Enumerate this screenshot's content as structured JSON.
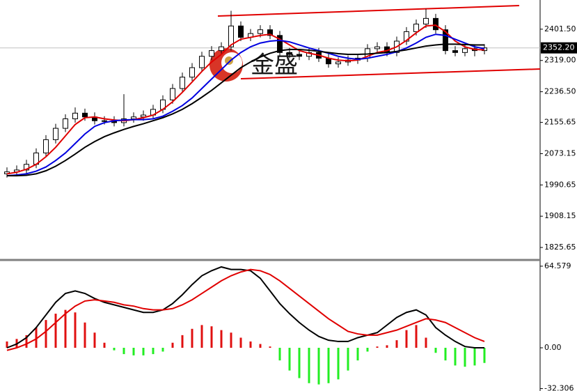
{
  "chart_data": [
    {
      "type": "candlestick",
      "watermark": "金盛",
      "open": [
        2020,
        2025,
        2030,
        2045,
        2075,
        2110,
        2140,
        2165,
        2180,
        2170,
        2160,
        2160,
        2155,
        2165,
        2170,
        2175,
        2190,
        2215,
        2245,
        2275,
        2300,
        2330,
        2345,
        2355,
        2410,
        2380,
        2390,
        2400,
        2385,
        2340,
        2335,
        2330,
        2340,
        2325,
        2310,
        2315,
        2320,
        2325,
        2350,
        2355,
        2340,
        2370,
        2395,
        2415,
        2430,
        2400,
        2345,
        2340,
        2350,
        2345
      ],
      "high": [
        2037,
        2042,
        2057,
        2087,
        2122,
        2152,
        2177,
        2195,
        2192,
        2182,
        2172,
        2172,
        2230,
        2182,
        2187,
        2202,
        2227,
        2257,
        2287,
        2312,
        2342,
        2357,
        2367,
        2450,
        2422,
        2402,
        2412,
        2412,
        2397,
        2352,
        2347,
        2352,
        2352,
        2337,
        2327,
        2332,
        2337,
        2362,
        2367,
        2367,
        2382,
        2407,
        2427,
        2455,
        2442,
        2412,
        2357,
        2362,
        2362,
        2362
      ],
      "low": [
        2010,
        2015,
        2020,
        2035,
        2065,
        2100,
        2130,
        2155,
        2160,
        2150,
        2150,
        2145,
        2145,
        2155,
        2160,
        2165,
        2180,
        2205,
        2235,
        2265,
        2290,
        2320,
        2335,
        2345,
        2370,
        2370,
        2380,
        2375,
        2330,
        2325,
        2320,
        2320,
        2315,
        2300,
        2300,
        2305,
        2310,
        2315,
        2340,
        2330,
        2330,
        2360,
        2385,
        2405,
        2390,
        2335,
        2330,
        2330,
        2330,
        2335
      ],
      "close": [
        2025,
        2030,
        2045,
        2075,
        2110,
        2140,
        2165,
        2180,
        2170,
        2160,
        2160,
        2155,
        2165,
        2170,
        2175,
        2190,
        2215,
        2245,
        2275,
        2300,
        2330,
        2345,
        2355,
        2410,
        2380,
        2390,
        2400,
        2385,
        2340,
        2335,
        2330,
        2340,
        2325,
        2310,
        2315,
        2320,
        2325,
        2350,
        2355,
        2340,
        2370,
        2395,
        2415,
        2430,
        2400,
        2345,
        2340,
        2350,
        2345,
        2352.2
      ],
      "up_color": "#ffffff",
      "down_color": "#000000",
      "outline_color": "#000000",
      "series": [
        {
          "color": "#e00000",
          "values": [
            2020,
            2024,
            2032,
            2045,
            2065,
            2090,
            2120,
            2150,
            2168,
            2170,
            2165,
            2162,
            2160,
            2163,
            2168,
            2175,
            2190,
            2210,
            2235,
            2262,
            2290,
            2315,
            2335,
            2360,
            2375,
            2380,
            2385,
            2388,
            2375,
            2360,
            2345,
            2338,
            2333,
            2325,
            2320,
            2318,
            2320,
            2330,
            2340,
            2345,
            2355,
            2372,
            2392,
            2410,
            2412,
            2395,
            2370,
            2355,
            2348,
            2347
          ]
        },
        {
          "color": "#0000e0",
          "values": [
            2015,
            2017,
            2020,
            2027,
            2038,
            2055,
            2075,
            2100,
            2125,
            2145,
            2155,
            2160,
            2162,
            2163,
            2163,
            2165,
            2172,
            2185,
            2200,
            2220,
            2245,
            2270,
            2295,
            2320,
            2340,
            2355,
            2365,
            2370,
            2372,
            2368,
            2360,
            2352,
            2345,
            2338,
            2330,
            2325,
            2322,
            2325,
            2330,
            2335,
            2342,
            2352,
            2365,
            2380,
            2388,
            2385,
            2375,
            2365,
            2355,
            2350
          ]
        },
        {
          "color": "#000000",
          "values": [
            2015,
            2015,
            2016,
            2020,
            2028,
            2040,
            2055,
            2072,
            2090,
            2105,
            2118,
            2128,
            2137,
            2145,
            2152,
            2160,
            2168,
            2178,
            2190,
            2205,
            2222,
            2240,
            2260,
            2280,
            2300,
            2315,
            2328,
            2338,
            2345,
            2348,
            2348,
            2346,
            2343,
            2340,
            2337,
            2335,
            2335,
            2336,
            2338,
            2340,
            2343,
            2347,
            2352,
            2357,
            2360,
            2362,
            2362,
            2361,
            2360,
            2360
          ]
        }
      ],
      "last_price": {
        "value": 2352.2,
        "label": "2352.20"
      },
      "ylim": [
        1794.5,
        2478.5
      ],
      "yticks": [
        {
          "value": 2401.5,
          "label": "2401.50"
        },
        {
          "value": 2319,
          "label": "2319.00"
        },
        {
          "value": 2236.5,
          "label": "2236.50"
        },
        2155.65,
        2073.15,
        1990.65,
        1908.15,
        1825.65
      ]
    },
    {
      "type": "macd",
      "histogram": [
        5,
        7,
        10,
        16,
        22,
        27,
        30,
        28,
        20,
        12,
        4,
        -2,
        -5,
        -6,
        -6,
        -5,
        -3,
        4,
        10,
        15,
        18,
        17,
        14,
        12,
        8,
        5,
        3,
        1,
        -10,
        -18,
        -24,
        -28,
        -29,
        -28,
        -25,
        -18,
        -10,
        -3,
        1,
        2,
        6,
        14,
        18,
        8,
        -4,
        -10,
        -14,
        -15,
        -14,
        -12
      ],
      "up_color": "#e01010",
      "down_color": "#22ee22",
      "series": [
        {
          "color": "#000000",
          "values": [
            0,
            3,
            8,
            16,
            26,
            36,
            43,
            45,
            43,
            39,
            36,
            34,
            32,
            30,
            28,
            28,
            30,
            35,
            42,
            50,
            57,
            61,
            64,
            62,
            62,
            61,
            55,
            45,
            35,
            27,
            20,
            14,
            9,
            6,
            5,
            5,
            8,
            10,
            12,
            18,
            24,
            28,
            30,
            26,
            16,
            10,
            5,
            1,
            0,
            0
          ]
        },
        {
          "color": "#e00000",
          "values": [
            -2,
            0,
            3,
            7,
            13,
            20,
            27,
            33,
            37,
            38,
            37,
            36,
            34,
            33,
            31,
            30,
            30,
            31,
            34,
            38,
            43,
            48,
            53,
            57,
            60,
            62,
            61,
            58,
            53,
            47,
            41,
            35,
            29,
            23,
            18,
            13,
            11,
            10,
            10,
            12,
            14,
            17,
            20,
            23,
            22,
            20,
            16,
            12,
            8,
            5
          ]
        }
      ],
      "ylim": [
        -34.2,
        68.4
      ],
      "yticks": [
        64.579,
        {
          "value": 0,
          "label": "0.00"
        },
        -32.306
      ]
    }
  ]
}
